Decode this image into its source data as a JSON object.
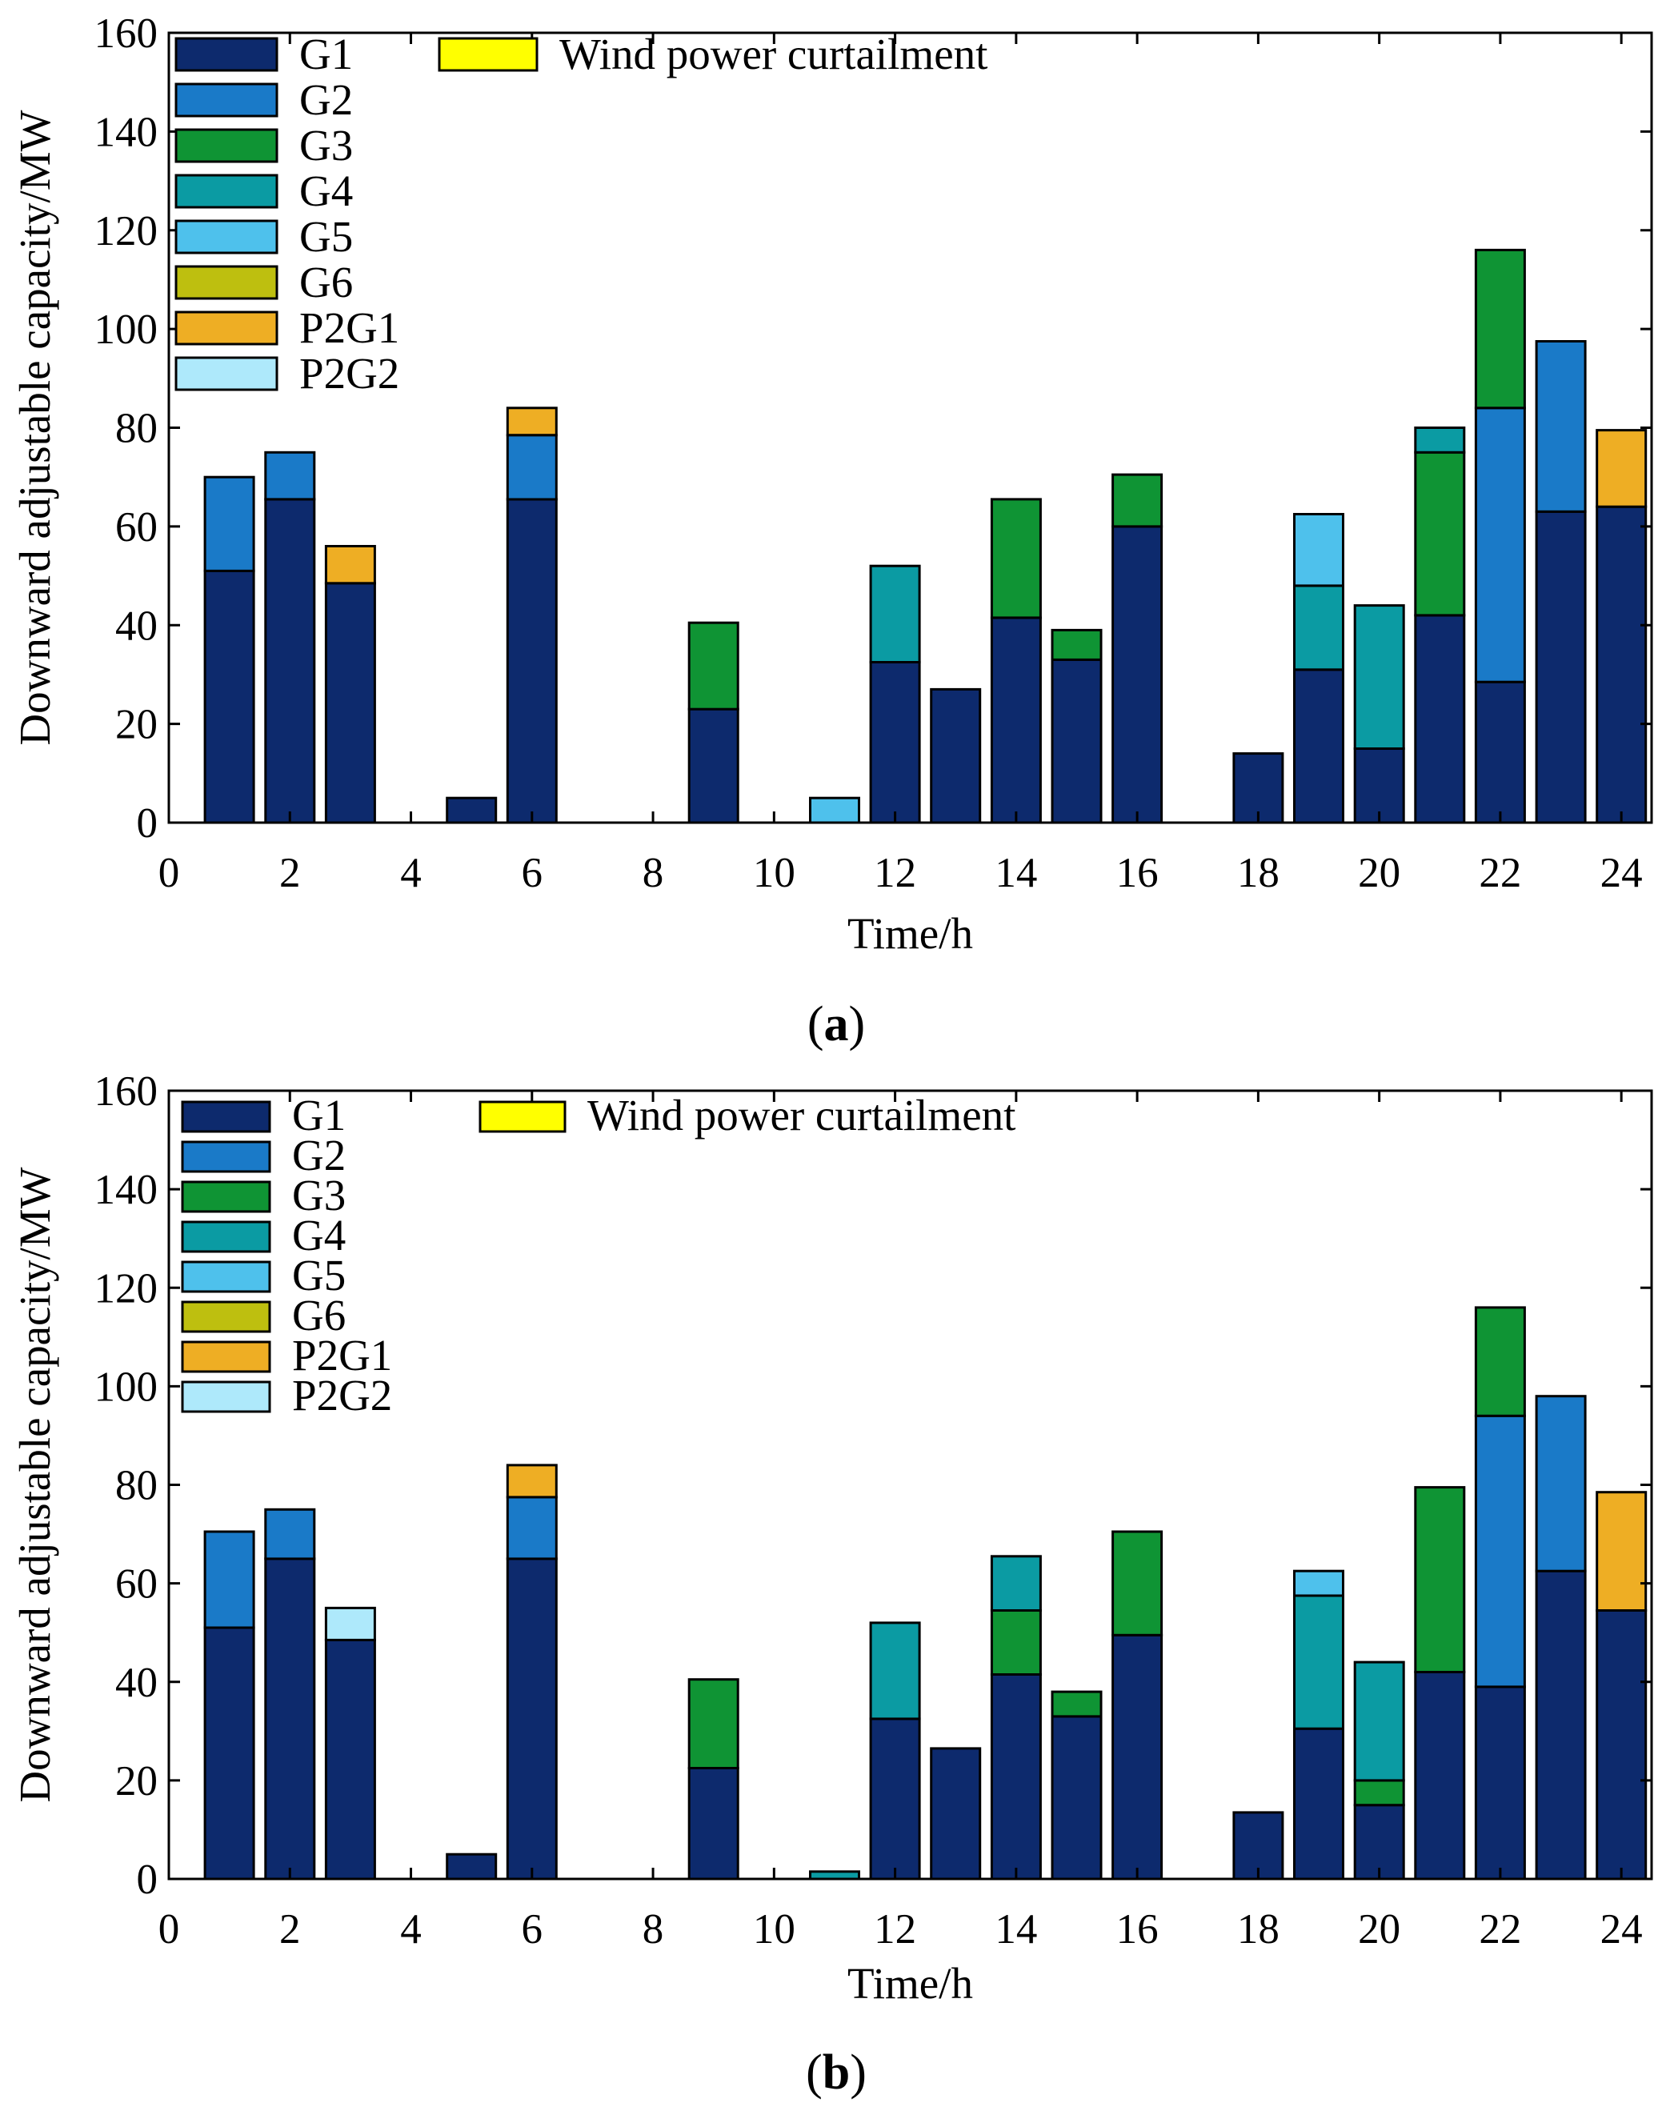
{
  "legend": {
    "items": [
      {
        "key": "G1",
        "label": "G1",
        "color": "#0d2a6d"
      },
      {
        "key": "G2",
        "label": "G2",
        "color": "#1a7ac8"
      },
      {
        "key": "G3",
        "label": "G3",
        "color": "#0f9434"
      },
      {
        "key": "G4",
        "label": "G4",
        "color": "#0b9ba3"
      },
      {
        "key": "G5",
        "label": "G5",
        "color": "#4ec1ec"
      },
      {
        "key": "G6",
        "label": "G6",
        "color": "#bebf0f"
      },
      {
        "key": "P2G1",
        "label": "P2G1",
        "color": "#eeae24"
      },
      {
        "key": "P2G2",
        "label": "P2G2",
        "color": "#aee9fb"
      }
    ],
    "extra": {
      "key": "Wind",
      "label": "Wind power curtailment",
      "color": "#ffff00"
    }
  },
  "chart_data": [
    {
      "type": "bar",
      "stacked": true,
      "caption_open": "(",
      "caption_letter": "a",
      "caption_close": ")",
      "xlabel": "Time/h",
      "ylabel": "Downward adjustable capacity/MW",
      "xlim": [
        0,
        24.5
      ],
      "ylim": [
        0,
        160
      ],
      "xticks": [
        0,
        2,
        4,
        6,
        8,
        10,
        12,
        14,
        16,
        18,
        20,
        22,
        24
      ],
      "yticks": [
        0,
        20,
        40,
        60,
        80,
        100,
        120,
        140,
        160
      ],
      "hours": [
        1,
        2,
        3,
        4,
        5,
        6,
        7,
        8,
        9,
        10,
        11,
        12,
        13,
        14,
        15,
        16,
        17,
        18,
        19,
        20,
        21,
        22,
        23,
        24
      ],
      "series": [
        {
          "name": "G1",
          "values": [
            51,
            65.5,
            48.5,
            0,
            5,
            65.5,
            0,
            0,
            23,
            0,
            0,
            32.5,
            27,
            41.5,
            33,
            60,
            0,
            14,
            31,
            15,
            42,
            28.5,
            63,
            64
          ]
        },
        {
          "name": "G2",
          "values": [
            19,
            9.5,
            0,
            0,
            0,
            13,
            0,
            0,
            0,
            0,
            0,
            0,
            0,
            0,
            0,
            0,
            0,
            0,
            0,
            0,
            0,
            55.5,
            34.5,
            0
          ]
        },
        {
          "name": "G3",
          "values": [
            0,
            0,
            0,
            0,
            0,
            0,
            0,
            0,
            17.5,
            0,
            0,
            0,
            0,
            24,
            6,
            10.5,
            0,
            0,
            0,
            0,
            33,
            32,
            0,
            0
          ]
        },
        {
          "name": "G4",
          "values": [
            0,
            0,
            0,
            0,
            0,
            0,
            0,
            0,
            0,
            0,
            0,
            19.5,
            0,
            0,
            0,
            0,
            0,
            0,
            17,
            29,
            5,
            0,
            0,
            0
          ]
        },
        {
          "name": "G5",
          "values": [
            0,
            0,
            0,
            0,
            0,
            0,
            0,
            0,
            0,
            0,
            5,
            0,
            0,
            0,
            0,
            0,
            0,
            0,
            14.5,
            0,
            0,
            0,
            0,
            0
          ]
        },
        {
          "name": "G6",
          "values": [
            0,
            0,
            0,
            0,
            0,
            0,
            0,
            0,
            0,
            0,
            0,
            0,
            0,
            0,
            0,
            0,
            0,
            0,
            0,
            0,
            0,
            0,
            0,
            0
          ]
        },
        {
          "name": "P2G1",
          "values": [
            0,
            0,
            7.5,
            0,
            0,
            5.5,
            0,
            0,
            0,
            0,
            0,
            0,
            0,
            0,
            0,
            0,
            0,
            0,
            0,
            0,
            0,
            0,
            0,
            15.5
          ]
        },
        {
          "name": "P2G2",
          "values": [
            0,
            0,
            0,
            0,
            0,
            0,
            0,
            0,
            0,
            0,
            0,
            0,
            0,
            0,
            0,
            0,
            0,
            0,
            0,
            0,
            0,
            0,
            0,
            0
          ]
        },
        {
          "name": "Wind power curtailment",
          "values": [
            0,
            0,
            0,
            0,
            0,
            0,
            0,
            0,
            0,
            0,
            0,
            0,
            0,
            0,
            0,
            0,
            0,
            0,
            0,
            0,
            0,
            0,
            0,
            0
          ]
        }
      ]
    },
    {
      "type": "bar",
      "stacked": true,
      "caption_open": "(",
      "caption_letter": "b",
      "caption_close": ")",
      "xlabel": "Time/h",
      "ylabel": "Downward adjustable capacity/MW",
      "xlim": [
        0,
        24.5
      ],
      "ylim": [
        0,
        160
      ],
      "xticks": [
        0,
        2,
        4,
        6,
        8,
        10,
        12,
        14,
        16,
        18,
        20,
        22,
        24
      ],
      "yticks": [
        0,
        20,
        40,
        60,
        80,
        100,
        120,
        140,
        160
      ],
      "hours": [
        1,
        2,
        3,
        4,
        5,
        6,
        7,
        8,
        9,
        10,
        11,
        12,
        13,
        14,
        15,
        16,
        17,
        18,
        19,
        20,
        21,
        22,
        23,
        24
      ],
      "series": [
        {
          "name": "G1",
          "values": [
            51,
            65,
            48.5,
            0,
            5,
            65,
            0,
            0,
            22.5,
            0,
            0,
            32.5,
            26.5,
            41.5,
            33,
            49.5,
            0,
            13.5,
            30.5,
            15,
            42,
            39,
            62.5,
            54.5
          ]
        },
        {
          "name": "G2",
          "values": [
            19.5,
            10,
            0,
            0,
            0,
            12.5,
            0,
            0,
            0,
            0,
            0,
            0,
            0,
            0,
            0,
            0,
            0,
            0,
            0,
            0,
            0,
            55,
            35.5,
            0
          ]
        },
        {
          "name": "G3",
          "values": [
            0,
            0,
            0,
            0,
            0,
            0,
            0,
            0,
            18,
            0,
            0,
            0,
            0,
            13,
            5,
            21,
            0,
            0,
            0,
            5,
            37.5,
            22,
            0,
            0
          ]
        },
        {
          "name": "G4",
          "values": [
            0,
            0,
            0,
            0,
            0,
            0,
            0,
            0,
            0,
            0,
            1.5,
            19.5,
            0,
            11,
            0,
            0,
            0,
            0,
            27,
            24,
            0,
            0,
            0,
            0
          ]
        },
        {
          "name": "G5",
          "values": [
            0,
            0,
            0,
            0,
            0,
            0,
            0,
            0,
            0,
            0,
            0,
            0,
            0,
            0,
            0,
            0,
            0,
            0,
            5,
            0,
            0,
            0,
            0,
            0
          ]
        },
        {
          "name": "G6",
          "values": [
            0,
            0,
            0,
            0,
            0,
            0,
            0,
            0,
            0,
            0,
            0,
            0,
            0,
            0,
            0,
            0,
            0,
            0,
            0,
            0,
            0,
            0,
            0,
            0
          ]
        },
        {
          "name": "P2G1",
          "values": [
            0,
            0,
            0,
            0,
            0,
            6.5,
            0,
            0,
            0,
            0,
            0,
            0,
            0,
            0,
            0,
            0,
            0,
            0,
            0,
            0,
            0,
            0,
            0,
            24
          ]
        },
        {
          "name": "P2G2",
          "values": [
            0,
            0,
            6.5,
            0,
            0,
            0,
            0,
            0,
            0,
            0,
            0,
            0,
            0,
            0,
            0,
            0,
            0,
            0,
            0,
            0,
            0,
            0,
            0,
            0
          ]
        },
        {
          "name": "Wind power curtailment",
          "values": [
            0,
            0,
            0,
            0,
            0,
            0,
            0,
            0,
            0,
            0,
            0,
            0,
            0,
            0,
            0,
            0,
            0,
            0,
            0,
            0,
            0,
            0,
            0,
            0
          ]
        }
      ]
    }
  ]
}
